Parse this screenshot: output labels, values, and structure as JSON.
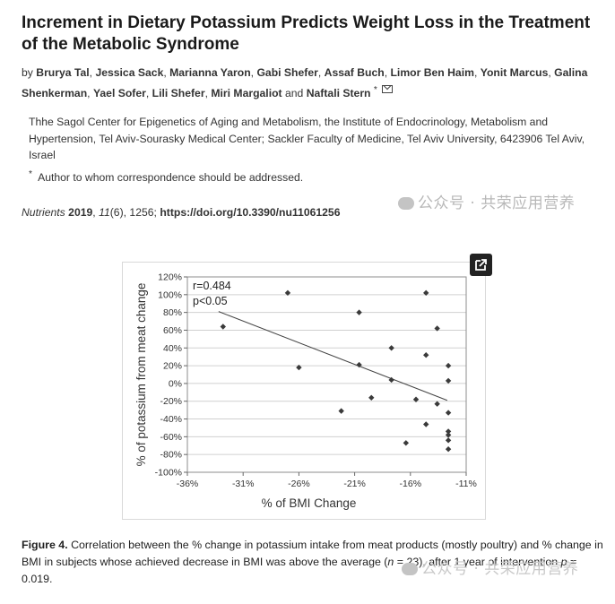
{
  "paper": {
    "title": "Increment in Dietary Potassium Predicts Weight Loss in the Treatment of the Metabolic Syndrome",
    "by_label": "by",
    "authors": [
      "Brurya Tal",
      "Jessica Sack",
      "Marianna Yaron",
      "Gabi Shefer",
      "Assaf Buch",
      "Limor Ben Haim",
      "Yonit Marcus",
      "Galina Shenkerman",
      "Yael Sofer",
      "Lili Shefer",
      "Miri Margaliot",
      "Naftali Stern"
    ],
    "and_label": "and",
    "corresponding_mark": "*",
    "affiliation": "Thhe Sagol Center for Epigenetics of Aging and Metabolism, the Institute of Endocrinology, Metabolism and Hypertension, Tel Aviv-Sourasky Medical Center; Sackler Faculty of Medicine, Tel Aviv University, 6423906 Tel Aviv, Israel",
    "correspondence_mark": "*",
    "correspondence": "Author to whom correspondence should be addressed.",
    "journal": "Nutrients",
    "year": "2019",
    "volume": "11",
    "issue": "(6)",
    "pages": ", 1256;",
    "doi": "https://doi.org/10.3390/nu11061256"
  },
  "watermark": {
    "text": "公众号 · 共荣应用营养",
    "text_partial": "公众号 · 共荣应用营养"
  },
  "caption": {
    "label": "Figure 4.",
    "text_1": "Correlation between the % change in potassium intake from meat products (mostly poultry) and % change in BMI in subjects whose achieved decrease in BMI was above the average (",
    "n_symbol": "n",
    "text_2": " = 23), after 1 year of intervention ",
    "p_symbol": "p",
    "text_3": " = 0.019."
  },
  "chart_data": {
    "type": "scatter",
    "title": "",
    "xlabel": "% of BMI Change",
    "ylabel": "% of potassium from meat change",
    "xlim": [
      -36,
      -11
    ],
    "ylim": [
      -100,
      120
    ],
    "x_ticks": [
      -36,
      -31,
      -26,
      -21,
      -16,
      -11
    ],
    "x_tick_labels": [
      "-36%",
      "-31%",
      "-26%",
      "-21%",
      "-16%",
      "-11%"
    ],
    "y_ticks": [
      -100,
      -80,
      -60,
      -40,
      -20,
      0,
      20,
      40,
      60,
      80,
      100,
      120
    ],
    "y_tick_labels": [
      "-100%",
      "-80%",
      "-60%",
      "-40%",
      "-20%",
      "0%",
      "20%",
      "40%",
      "60%",
      "80%",
      "100%",
      "120%"
    ],
    "annotations": [
      "r=0.484",
      "p<0.05"
    ],
    "points": [
      {
        "x": -32.8,
        "y": 64
      },
      {
        "x": -27.0,
        "y": 102
      },
      {
        "x": -26.0,
        "y": 18
      },
      {
        "x": -22.2,
        "y": -31
      },
      {
        "x": -20.6,
        "y": 80
      },
      {
        "x": -20.6,
        "y": 21
      },
      {
        "x": -19.5,
        "y": -16
      },
      {
        "x": -17.7,
        "y": 40
      },
      {
        "x": -17.7,
        "y": 4
      },
      {
        "x": -16.4,
        "y": -67
      },
      {
        "x": -15.5,
        "y": -18
      },
      {
        "x": -14.6,
        "y": 102
      },
      {
        "x": -14.6,
        "y": 32
      },
      {
        "x": -14.6,
        "y": -46
      },
      {
        "x": -13.6,
        "y": 62
      },
      {
        "x": -13.6,
        "y": -23
      },
      {
        "x": -12.6,
        "y": 20
      },
      {
        "x": -12.6,
        "y": 3
      },
      {
        "x": -12.6,
        "y": -33
      },
      {
        "x": -12.6,
        "y": -54
      },
      {
        "x": -12.6,
        "y": -58
      },
      {
        "x": -12.6,
        "y": -64
      },
      {
        "x": -12.6,
        "y": -74
      }
    ],
    "trendline": {
      "x1": -33.2,
      "y1": 81,
      "x2": -12.7,
      "y2": -19
    }
  }
}
